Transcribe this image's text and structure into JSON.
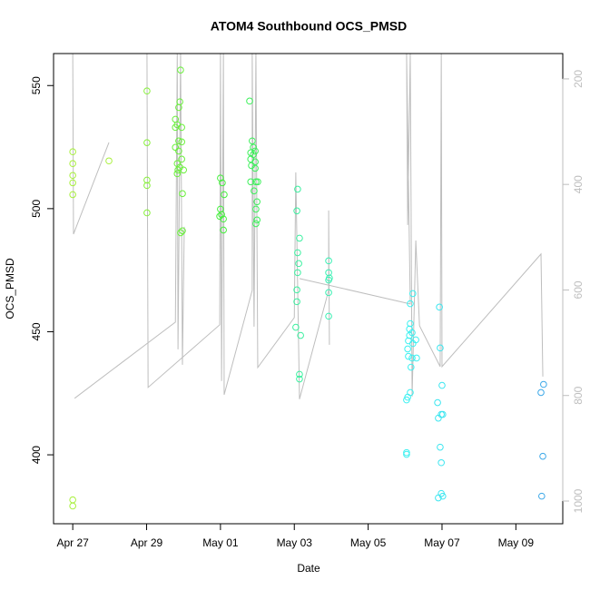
{
  "chart_data": {
    "type": "scatter",
    "title": "ATOM4 Southbound OCS_PMSD",
    "x_label": "Date",
    "y_label": "OCS_PMSD",
    "xlim": [
      -0.52,
      13.27
    ],
    "xticks": [
      {
        "value": 0,
        "label": "Apr 27"
      },
      {
        "value": 2,
        "label": "Apr 29"
      },
      {
        "value": 4,
        "label": "May 01"
      },
      {
        "value": 6,
        "label": "May 03"
      },
      {
        "value": 8,
        "label": "May 05"
      },
      {
        "value": 10,
        "label": "May 07"
      },
      {
        "value": 12,
        "label": "May 09"
      }
    ],
    "ylim": [
      372,
      563
    ],
    "yticks": [
      400,
      450,
      500,
      550
    ],
    "y2lim": [
      1043,
      152
    ],
    "y2ticks": [
      200,
      400,
      600,
      800,
      1000
    ],
    "y2_color": "#bebebe",
    "series": [
      {
        "color": "#a8f03c",
        "x": [
          0,
          0,
          0,
          0,
          0,
          0,
          0,
          0.98
        ],
        "values": [
          523.1,
          518.3,
          513.5,
          510.5,
          505.7,
          381.7,
          379.2,
          519.4
        ]
      },
      {
        "color": "#88f03c",
        "x": [
          2.01,
          2.01,
          2.01,
          2.01,
          2.01
        ],
        "values": [
          547.8,
          526.8,
          511.6,
          509.4,
          498.3
        ]
      },
      {
        "color": "#6af03c",
        "x": [
          2.92,
          2.9,
          2.87,
          2.78,
          2.83,
          2.95,
          2.78,
          2.87,
          2.95,
          2.78,
          2.87,
          2.95,
          2.83,
          2.9,
          2.85,
          3.0,
          2.83,
          2.97,
          2.97,
          2.92
        ],
        "values": [
          556.3,
          543.4,
          541.1,
          536.3,
          534.1,
          533.0,
          533.0,
          527.5,
          527.1,
          524.9,
          523.4,
          520.1,
          518.3,
          516.8,
          515.7,
          515.7,
          514.2,
          506.1,
          491.0,
          490.2
        ]
      },
      {
        "color": "#44f03c",
        "x": [
          4.0,
          4.05,
          4.1,
          4.0,
          4.03,
          3.98,
          4.08,
          4.08
        ],
        "values": [
          512.4,
          510.5,
          505.7,
          499.8,
          497.6,
          496.9,
          495.8,
          491.3
        ]
      },
      {
        "color": "#3cf05a",
        "x": [
          4.79,
          4.86,
          4.89,
          4.82,
          4.94,
          4.89,
          4.82,
          4.94,
          4.84,
          4.94,
          4.82,
          4.96,
          5.01,
          4.91,
          4.99,
          4.96,
          4.99,
          4.96
        ],
        "values": [
          543.7,
          527.5,
          524.9,
          522.7,
          523.4,
          522.0,
          520.1,
          519.0,
          517.5,
          516.4,
          510.9,
          510.9,
          510.9,
          507.2,
          502.8,
          499.8,
          495.4,
          493.9
        ]
      },
      {
        "color": "#3cf0a0",
        "x": [
          6.09,
          6.07,
          6.14,
          6.09,
          6.12,
          6.09,
          6.07,
          6.07,
          6.04,
          6.17,
          6.14,
          6.14
        ],
        "values": [
          507.9,
          499.1,
          488.0,
          482.1,
          477.7,
          474.0,
          467.0,
          462.2,
          451.8,
          448.5,
          432.7,
          430.8
        ]
      },
      {
        "color": "#3cf0b4",
        "x": [
          6.93,
          6.93,
          6.95,
          6.93,
          6.93,
          6.93
        ],
        "values": [
          478.8,
          474.0,
          471.8,
          471.0,
          465.9,
          456.3
        ]
      },
      {
        "color": "#3cf0f0",
        "x": [
          9.04,
          9.07,
          9.14,
          9.21,
          9.14,
          9.14,
          9.12,
          9.12,
          9.19,
          9.29,
          9.09,
          9.07,
          9.21,
          9.09,
          9.19,
          9.31,
          9.16,
          9.04,
          9.04
        ],
        "values": [
          422.3,
          423.4,
          425.3,
          465.5,
          461.4,
          453.3,
          451.1,
          448.5,
          449.6,
          446.7,
          446.3,
          443.0,
          445.2,
          440.0,
          439.3,
          439.3,
          435.6,
          400.9,
          400.2
        ]
      },
      {
        "color": "#3ce6f0",
        "x": [
          9.93,
          9.95,
          10.0,
          9.88,
          9.98,
          10.02,
          9.9,
          9.95,
          9.98,
          9.98,
          10.02,
          9.9
        ],
        "values": [
          460.0,
          443.4,
          428.2,
          421.2,
          416.4,
          416.4,
          414.9,
          403.1,
          396.8,
          384.3,
          383.2,
          382.5
        ]
      },
      {
        "color": "#3ca8e8",
        "x": [
          12.75,
          12.68,
          12.73,
          12.7
        ],
        "values": [
          428.6,
          425.3,
          399.4,
          383.2
        ]
      },
      {
        "type": "line",
        "axis": "y2",
        "color": "#bebebe",
        "x": [
          0,
          0.02,
          0.98,
          null,
          0.05,
          2.78,
          2.83,
          2.85,
          2.92,
          2.97,
          3.02,
          null,
          2.01,
          2.04,
          3.98,
          4.0,
          4.03,
          4.08,
          4.1,
          4.86,
          4.86,
          4.91,
          4.96,
          5.01,
          6.0,
          6.04,
          6.14,
          6.93,
          6.93,
          6.95,
          null,
          6.14,
          9.14,
          9.04,
          9.07,
          9.14,
          9.19,
          9.29,
          9.39,
          9.95,
          9.98,
          10.0,
          12.68,
          12.73
        ],
        "values": [
          152,
          494.1,
          320.4,
          null,
          805.3,
          660.9,
          152,
          712.5,
          152,
          741.7,
          480.3,
          null,
          152,
          784.7,
          666.0,
          152,
          772.6,
          152,
          798.5,
          600.7,
          152,
          669.5,
          152,
          746.9,
          652.3,
          377.1,
          807.0,
          600.7,
          449.4,
          703.9,
          null,
          578.3,
          626.5,
          152,
          476.9,
          152,
          801.9,
          506.1,
          667.8,
          745.2,
          152,
          745.2,
          531.9,
          764.1
        ]
      }
    ]
  }
}
